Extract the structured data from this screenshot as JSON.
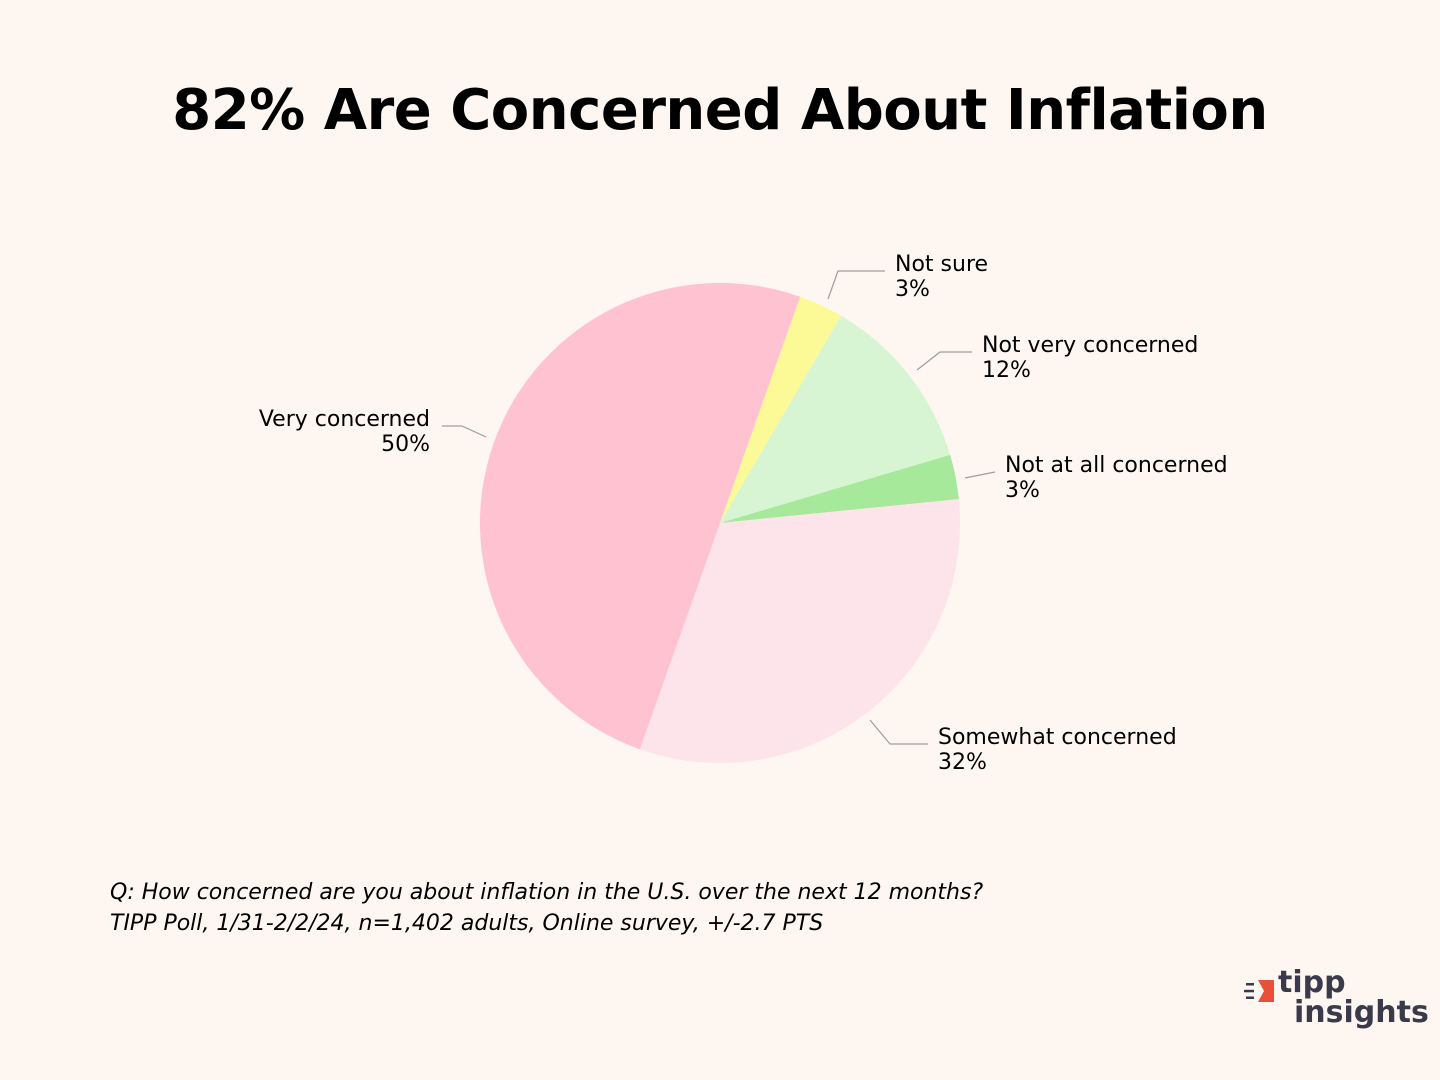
{
  "chart_data": {
    "type": "pie",
    "title": "82% Are Concerned About Inflation",
    "slices": [
      {
        "label": "Not sure",
        "value": 3,
        "value_label": "3%",
        "color": "#fbfa97"
      },
      {
        "label": "Not very concerned",
        "value": 12,
        "value_label": "12%",
        "color": "#d8f5d3"
      },
      {
        "label": "Not at all concerned",
        "value": 3,
        "value_label": "3%",
        "color": "#a7e99a"
      },
      {
        "label": "Somewhat concerned",
        "value": 32,
        "value_label": "32%",
        "color": "#fde4ea"
      },
      {
        "label": "Very concerned",
        "value": 50,
        "value_label": "50%",
        "color": "#ffc2d1"
      }
    ]
  },
  "footnote": {
    "question": "Q:  How concerned are you about inflation in the U.S. over the next 12 months?",
    "source": "TIPP Poll, 1/31-2/2/24, n=1,402 adults, Online survey, +/-2.7 PTS"
  },
  "logo": {
    "line1": "tipp",
    "line2": "insights",
    "colors": {
      "accent": "#e8503a",
      "text": "#3a3a4a"
    }
  }
}
